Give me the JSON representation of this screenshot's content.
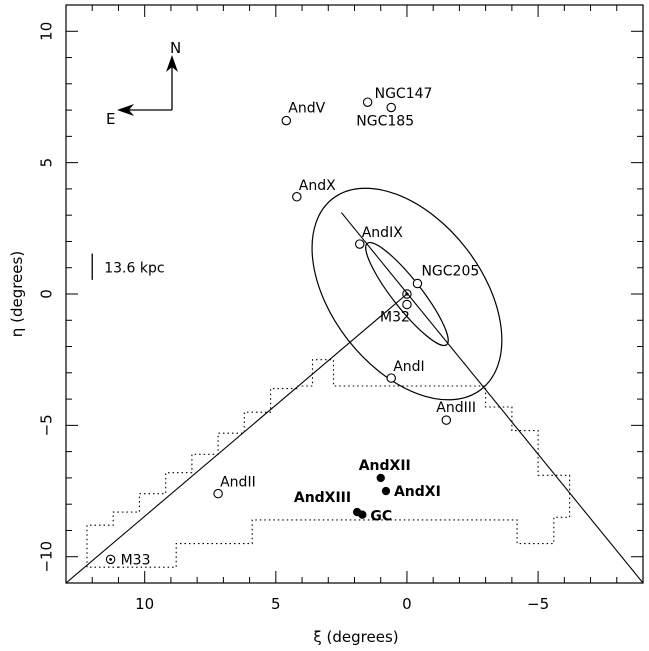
{
  "chart_data": {
    "type": "scatter",
    "xlabel": "ξ (degrees)",
    "ylabel": "η (degrees)",
    "xlim": [
      13,
      -9
    ],
    "ylim": [
      -11,
      11
    ],
    "x_ticks": [
      10,
      5,
      0,
      -5
    ],
    "y_ticks": [
      10,
      5,
      0,
      -5,
      -10
    ],
    "x_tick_labels": [
      "10",
      "5",
      "0",
      "−5"
    ],
    "y_tick_labels": [
      "10",
      "5",
      "0",
      "−5",
      "−10"
    ],
    "grid": false,
    "compass": {
      "north": "N",
      "east": "E"
    },
    "scale_bar": {
      "label": "13.6 kpc",
      "length_deg": 1.0,
      "x": 12.0,
      "y": 1.0
    },
    "points": [
      {
        "name": "NGC147",
        "x": 1.5,
        "y": 7.3,
        "filled": false,
        "bold": false
      },
      {
        "name": "NGC185",
        "x": 0.6,
        "y": 7.1,
        "filled": false,
        "bold": false
      },
      {
        "name": "AndV",
        "x": 4.6,
        "y": 6.6,
        "filled": false,
        "bold": false
      },
      {
        "name": "AndX",
        "x": 4.2,
        "y": 3.7,
        "filled": false,
        "bold": false
      },
      {
        "name": "AndIX",
        "x": 1.8,
        "y": 1.9,
        "filled": false,
        "bold": false
      },
      {
        "name": "NGC205",
        "x": -0.4,
        "y": 0.4,
        "filled": false,
        "bold": false
      },
      {
        "name": "M32",
        "x": 0.0,
        "y": -0.4,
        "filled": false,
        "bold": false
      },
      {
        "name": "AndI",
        "x": 0.6,
        "y": -3.2,
        "filled": false,
        "bold": false
      },
      {
        "name": "AndIII",
        "x": -1.5,
        "y": -4.8,
        "filled": false,
        "bold": false
      },
      {
        "name": "AndXII",
        "x": 1.0,
        "y": -7.0,
        "filled": true,
        "bold": true
      },
      {
        "name": "AndXI",
        "x": 0.8,
        "y": -7.5,
        "filled": true,
        "bold": true
      },
      {
        "name": "AndXIII",
        "x": 1.9,
        "y": -8.3,
        "filled": true,
        "bold": true
      },
      {
        "name": "GC",
        "x": 1.7,
        "y": -8.4,
        "filled": true,
        "bold": true
      },
      {
        "name": "AndII",
        "x": 7.2,
        "y": -7.6,
        "filled": false,
        "bold": false
      },
      {
        "name": "M33",
        "x": 11.3,
        "y": -10.1,
        "filled": false,
        "bold": false
      }
    ],
    "m31_center": {
      "x": 0.0,
      "y": 0.0
    },
    "outer_ellipse": {
      "cx": 0.0,
      "cy": 0.0,
      "semi_major": 4.6,
      "semi_minor": 2.85,
      "pa_deg": 38
    },
    "inner_ellipse": {
      "cx": 0.0,
      "cy": 0.0,
      "semi_major": 2.45,
      "semi_minor": 0.55,
      "pa_deg": 38
    },
    "lines": [
      {
        "from": [
          0.0,
          0.0
        ],
        "to": [
          13.0,
          -11.0
        ]
      },
      {
        "from": [
          2.5,
          3.1
        ],
        "to": [
          -9.0,
          -11.0
        ]
      }
    ],
    "survey_boundary": [
      [
        11.0,
        -10.4
      ],
      [
        12.2,
        -10.4
      ],
      [
        12.2,
        -8.8
      ],
      [
        11.2,
        -8.8
      ],
      [
        11.2,
        -8.3
      ],
      [
        10.2,
        -8.3
      ],
      [
        10.2,
        -7.6
      ],
      [
        9.2,
        -7.6
      ],
      [
        9.2,
        -6.8
      ],
      [
        8.2,
        -6.8
      ],
      [
        8.2,
        -6.1
      ],
      [
        7.2,
        -6.1
      ],
      [
        7.2,
        -5.3
      ],
      [
        6.2,
        -5.3
      ],
      [
        6.2,
        -4.5
      ],
      [
        5.2,
        -4.5
      ],
      [
        5.2,
        -3.6
      ],
      [
        4.2,
        -3.6
      ],
      [
        4.2,
        -3.5
      ],
      [
        3.6,
        -3.5
      ],
      [
        3.6,
        -2.5
      ],
      [
        2.8,
        -2.5
      ],
      [
        2.8,
        -3.5
      ],
      [
        -3.0,
        -3.5
      ],
      [
        -3.0,
        -4.3
      ],
      [
        -4.0,
        -4.3
      ],
      [
        -4.0,
        -5.2
      ],
      [
        -5.0,
        -5.2
      ],
      [
        -5.0,
        -6.9
      ],
      [
        -6.2,
        -6.9
      ],
      [
        -6.2,
        -8.5
      ],
      [
        -5.6,
        -8.5
      ],
      [
        -5.6,
        -9.5
      ],
      [
        -4.2,
        -9.5
      ],
      [
        -4.2,
        -8.6
      ],
      [
        5.9,
        -8.6
      ],
      [
        5.9,
        -9.5
      ],
      [
        8.8,
        -9.5
      ],
      [
        8.8,
        -10.4
      ],
      [
        11.0,
        -10.4
      ]
    ]
  }
}
